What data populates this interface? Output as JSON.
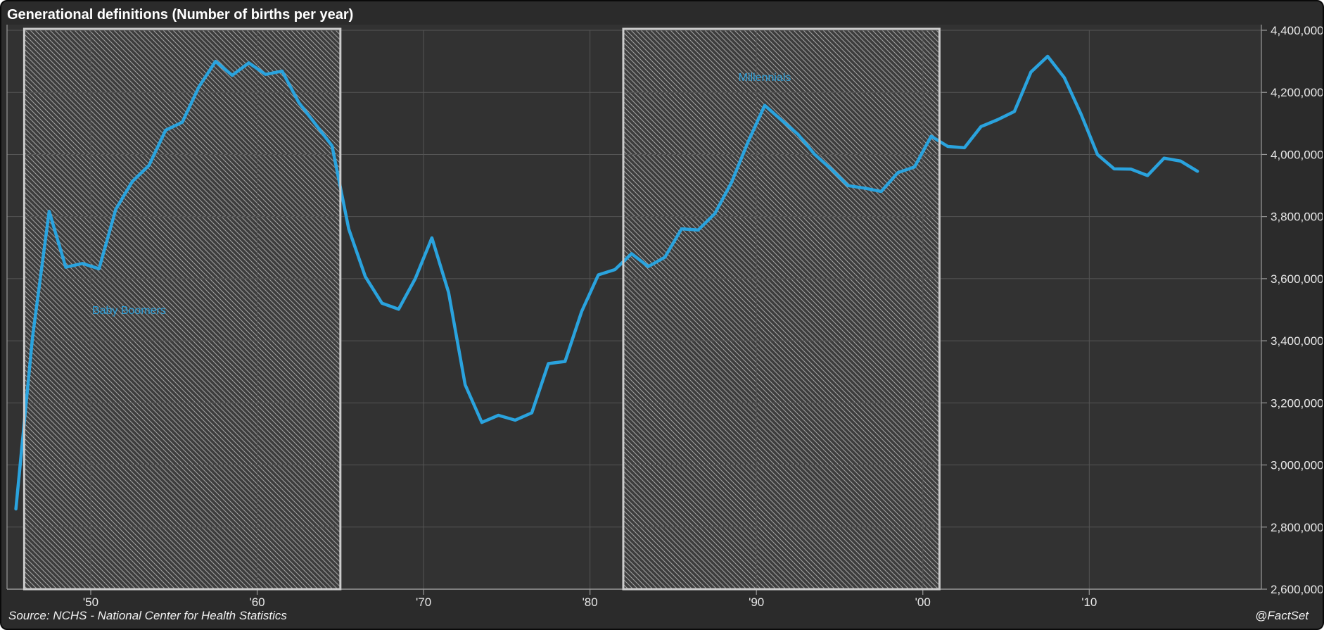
{
  "chart": {
    "title": "Generational definitions (Number of births per year)"
  },
  "footer": {
    "source": "Source: NCHS - National Center for Health Statistics",
    "brand": "@FactSet"
  },
  "colors": {
    "background": "#2B2B2B",
    "plot_bg": "#323232",
    "grid": "#555555",
    "axis": "#999999",
    "tick_text": "#E8E8E8",
    "line": "#2AA3DE",
    "band_border": "#CCCCCC",
    "band_bg": "#3D3D3D",
    "hatch_line": "#A0A0A0",
    "band_label": "#2D9FD8"
  },
  "chart_data": {
    "type": "line",
    "title": "Generational definitions (Number of births per year)",
    "series_name": "Number of births per year",
    "x": [
      1945,
      1946,
      1947,
      1948,
      1949,
      1950,
      1951,
      1952,
      1953,
      1954,
      1955,
      1956,
      1957,
      1958,
      1959,
      1960,
      1961,
      1962,
      1963,
      1964,
      1965,
      1966,
      1967,
      1968,
      1969,
      1970,
      1971,
      1972,
      1973,
      1974,
      1975,
      1976,
      1977,
      1978,
      1979,
      1980,
      1981,
      1982,
      1983,
      1984,
      1985,
      1986,
      1987,
      1988,
      1989,
      1990,
      1991,
      1992,
      1993,
      1994,
      1995,
      1996,
      1997,
      1998,
      1999,
      2000,
      2001,
      2002,
      2003,
      2004,
      2005,
      2006,
      2007,
      2008,
      2009,
      2010,
      2011,
      2012,
      2013,
      2014,
      2015,
      2016
    ],
    "values": [
      2858449,
      3411000,
      3817000,
      3637000,
      3649000,
      3632000,
      3823000,
      3913000,
      3965000,
      4078000,
      4104000,
      4218000,
      4300000,
      4255000,
      4295000,
      4257850,
      4268326,
      4167362,
      4098020,
      4027490,
      3760358,
      3606274,
      3520959,
      3501564,
      3600206,
      3731386,
      3555970,
      3258411,
      3136965,
      3159958,
      3144198,
      3167788,
      3326632,
      3333279,
      3494398,
      3612258,
      3629238,
      3680537,
      3638933,
      3669141,
      3760561,
      3756547,
      3809394,
      3909510,
      4040958,
      4158212,
      4110907,
      4065014,
      4000240,
      3952767,
      3899589,
      3891494,
      3880894,
      3941553,
      3959417,
      4058814,
      4025933,
      4021726,
      4089950,
      4112052,
      4138349,
      4265555,
      4316233,
      4247694,
      4130665,
      3999386,
      3953590,
      3952841,
      3932181,
      3988076,
      3978497,
      3945875
    ],
    "ylim": [
      2600000,
      4400000
    ],
    "xlim": [
      1944.97,
      2020.33
    ],
    "grid": true,
    "legend": false,
    "y_axis": {
      "side": "right",
      "ticks": [
        {
          "value": 2600000,
          "label": "2,600,000"
        },
        {
          "value": 2800000,
          "label": "2,800,000"
        },
        {
          "value": 3000000,
          "label": "3,000,000"
        },
        {
          "value": 3200000,
          "label": "3,200,000"
        },
        {
          "value": 3400000,
          "label": "3,400,000"
        },
        {
          "value": 3600000,
          "label": "3,600,000"
        },
        {
          "value": 3800000,
          "label": "3,800,000"
        },
        {
          "value": 4000000,
          "label": "4,000,000"
        },
        {
          "value": 4200000,
          "label": "4,200,000"
        },
        {
          "value": 4400000,
          "label": "4,400,000"
        }
      ]
    },
    "x_axis": {
      "ticks": [
        {
          "value": 1950,
          "label": "'50"
        },
        {
          "value": 1960,
          "label": "'60"
        },
        {
          "value": 1970,
          "label": "'70"
        },
        {
          "value": 1980,
          "label": "'80"
        },
        {
          "value": 1990,
          "label": "'90"
        },
        {
          "value": 2000,
          "label": "'00"
        },
        {
          "value": 2010,
          "label": "'10"
        }
      ]
    },
    "bands": [
      {
        "name": "Baby Boomers",
        "from_year": 1946,
        "to_year": 1965,
        "label_anchor": {
          "year": 1952.3,
          "value": 3500000
        }
      },
      {
        "name": "Millennials",
        "from_year": 1982,
        "to_year": 2001,
        "label_anchor": {
          "year": 1990.5,
          "value": 4250000
        }
      }
    ]
  }
}
